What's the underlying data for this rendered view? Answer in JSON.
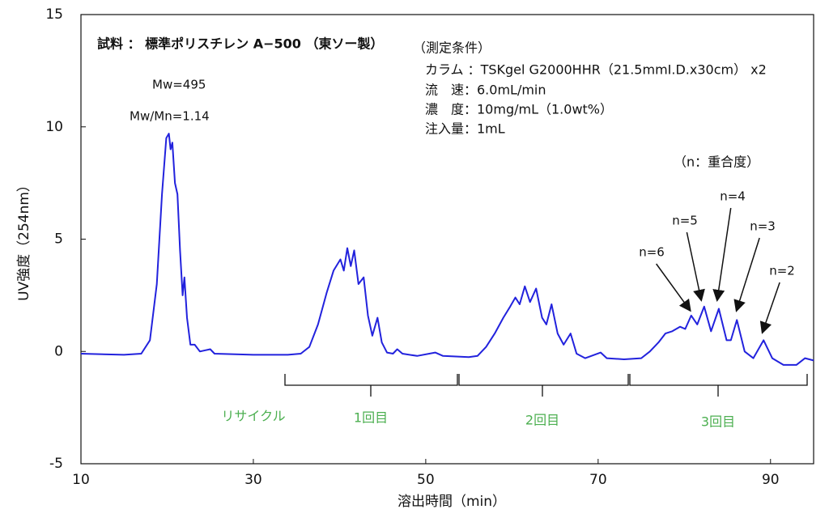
{
  "chart_data": {
    "type": "line",
    "title": "試料 ： 標準ポリスチレン A−500 （東ソー製）",
    "xlabel": "溶出時間（min）",
    "ylabel": "UV強度（254nm）",
    "xlim": [
      10,
      95
    ],
    "ylim": [
      -5,
      15
    ],
    "xticks": [
      10,
      30,
      50,
      70,
      90
    ],
    "yticks": [
      -5,
      0,
      5,
      10,
      15
    ],
    "sample_info": [
      "Mw=495",
      "Mw/Mn=1.14"
    ],
    "conditions": [
      "（測定条件）",
      "カラム ：TSKgel G2000HHR（21.5mmI.D.x30cm） x2",
      "流　速：6.0mL/min",
      "濃　度：10mg/mL（1.0wt%）",
      "注入量：1mL"
    ],
    "legend_note": "（n：重合度）",
    "peak_labels": [
      "n=6",
      "n=5",
      "n=4",
      "n=3",
      "n=2"
    ],
    "cycle_labels": [
      "リサイクル",
      "1回目",
      "2回目",
      "3回目"
    ],
    "series": [
      {
        "name": "UV",
        "color": "#2222dd",
        "x": [
          10,
          15,
          17,
          18,
          18.8,
          19.4,
          19.9,
          20.2,
          20.4,
          20.6,
          20.9,
          21.2,
          21.5,
          21.8,
          22.0,
          22.3,
          22.7,
          23.2,
          23.8,
          25,
          25.5,
          30,
          34,
          35.5,
          36.5,
          37.5,
          38.5,
          39.3,
          40.1,
          40.5,
          40.9,
          41.3,
          41.7,
          42.2,
          42.8,
          43.3,
          43.8,
          44.4,
          44.9,
          45.5,
          46.2,
          46.7,
          47.3,
          49,
          51.1,
          52,
          55,
          56,
          57,
          58,
          59,
          59.8,
          60.4,
          60.9,
          61.5,
          62.1,
          62.8,
          63.5,
          64.0,
          64.6,
          65.3,
          66.0,
          66.8,
          67.5,
          68.5,
          70.3,
          71,
          73,
          75,
          76,
          77,
          77.8,
          78.6,
          79.5,
          80.1,
          80.8,
          81.5,
          82.3,
          83.1,
          84.0,
          84.9,
          85.4,
          86.1,
          87.0,
          88.0,
          89.2,
          90.2,
          91.5,
          93,
          94,
          95
        ],
        "values": [
          -0.1,
          -0.15,
          -0.1,
          0.5,
          3,
          7,
          9.5,
          9.7,
          9.0,
          9.3,
          7.5,
          7.0,
          4.5,
          2.5,
          3.3,
          1.5,
          0.3,
          0.3,
          0.0,
          0.1,
          -0.1,
          -0.15,
          -0.15,
          -0.1,
          0.2,
          1.2,
          2.6,
          3.6,
          4.1,
          3.6,
          4.6,
          3.8,
          4.5,
          3.0,
          3.3,
          1.6,
          0.7,
          1.5,
          0.4,
          -0.05,
          -0.1,
          0.1,
          -0.1,
          -0.2,
          -0.05,
          -0.2,
          -0.25,
          -0.2,
          0.2,
          0.8,
          1.5,
          2.0,
          2.4,
          2.1,
          2.9,
          2.2,
          2.8,
          1.5,
          1.2,
          2.1,
          0.8,
          0.3,
          0.8,
          -0.1,
          -0.3,
          -0.05,
          -0.3,
          -0.35,
          -0.3,
          0.0,
          0.4,
          0.8,
          0.9,
          1.1,
          1.0,
          1.6,
          1.2,
          2.0,
          0.9,
          1.9,
          0.5,
          0.5,
          1.4,
          0.0,
          -0.3,
          0.5,
          -0.3,
          -0.6,
          -0.6,
          -0.3,
          -0.4
        ]
      }
    ]
  }
}
